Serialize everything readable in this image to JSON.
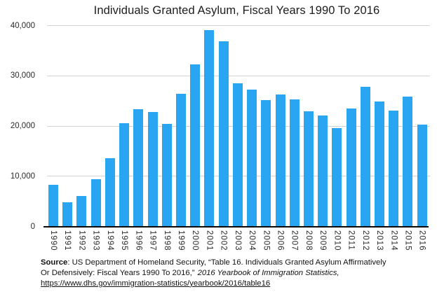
{
  "chart_data": {
    "type": "bar",
    "title": "Individuals Granted Asylum, Fiscal Years 1990 To 2016",
    "categories": [
      "1990",
      "1991",
      "1992",
      "1993",
      "1994",
      "1995",
      "1996",
      "1997",
      "1998",
      "1999",
      "2000",
      "2001",
      "2002",
      "2003",
      "2004",
      "2005",
      "2006",
      "2007",
      "2008",
      "2009",
      "2010",
      "2011",
      "2012",
      "2013",
      "2014",
      "2015",
      "2016"
    ],
    "values": [
      8300,
      4900,
      6200,
      9500,
      13700,
      20600,
      23400,
      22900,
      20500,
      26500,
      32400,
      39100,
      36900,
      28600,
      27300,
      25200,
      26300,
      25300,
      23000,
      22200,
      19700,
      23500,
      27900,
      24900,
      23200,
      25900,
      20400
    ],
    "xlabel": "",
    "ylabel": "",
    "ylim": [
      0,
      40000
    ],
    "ytick_labels": [
      "0",
      "10,000",
      "20,000",
      "30,000",
      "40,000"
    ],
    "grid": "horizontal gridlines at each 10,000",
    "legend": "none",
    "bar_color": "#29a5f1",
    "gridline_color": "#d2d2d2",
    "axis_color": "#0a0a0a"
  },
  "footer": {
    "source_label": "Source",
    "line1_rest": ": US Department of Homeland Security, “Table 16. Individuals Granted Asylum Affirmatively",
    "line2_normal": "Or Defensively: Fiscal Years 1990 To 2016,”",
    "line2_italic": "2016 Yearbook of Immigration Statistics,",
    "line3_link": "https://www.dhs.gov/immigration-statistics/yearbook/2016/table16"
  }
}
